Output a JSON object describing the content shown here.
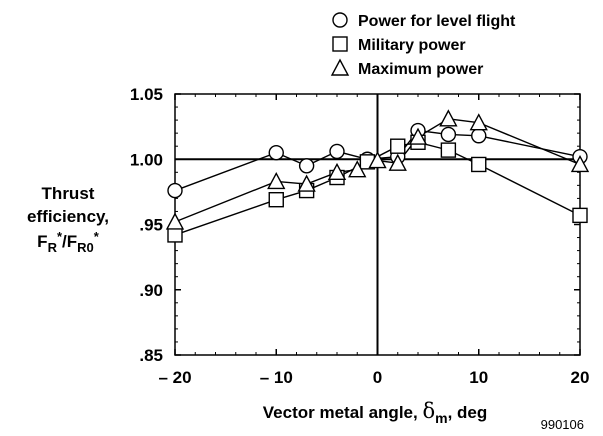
{
  "chart_data": {
    "type": "line",
    "xlabel": "Vector metal angle, δm, deg",
    "xlabel_main": "Vector metal angle, ",
    "xlabel_symbol": "δ",
    "xlabel_sub": "m",
    "xlabel_tail": ", deg",
    "ylabel_lines": [
      "Thrust",
      "efficiency,"
    ],
    "ylabel_ratio": {
      "num": "F",
      "num_sub": "R",
      "num_sup": "*",
      "slash": "/",
      "den": "F",
      "den_sub": "R0",
      "den_sup": "*"
    },
    "xlim": [
      -20,
      20
    ],
    "ylim": [
      0.85,
      1.05
    ],
    "xticks": [
      -20,
      -10,
      0,
      10,
      20
    ],
    "xtick_labels": [
      "– 20",
      "– 10",
      "0",
      "10",
      "20"
    ],
    "yticks": [
      0.85,
      0.9,
      0.95,
      1.0,
      1.05
    ],
    "ytick_labels": [
      ".85",
      ".90",
      ".95",
      "1.00",
      "1.05"
    ],
    "reference_lines": {
      "x": 0,
      "y": 1.0
    },
    "legend_position": "top-right",
    "series": [
      {
        "name": "Power for level flight",
        "marker": "circle",
        "x": [
          -20,
          -10,
          -7,
          -4,
          -1,
          2,
          4,
          7,
          10,
          20
        ],
        "y": [
          0.976,
          1.005,
          0.995,
          1.006,
          1.0,
          1.002,
          1.022,
          1.019,
          1.018,
          1.002
        ]
      },
      {
        "name": "Military power",
        "marker": "square",
        "x": [
          -20,
          -10,
          -7,
          -4,
          -1,
          2,
          4,
          7,
          10,
          20
        ],
        "y": [
          0.942,
          0.969,
          0.976,
          0.986,
          0.998,
          1.01,
          1.013,
          1.007,
          0.996,
          0.957
        ]
      },
      {
        "name": "Maximum power",
        "marker": "triangle",
        "x": [
          -20,
          -10,
          -7,
          -4,
          -2,
          0,
          2,
          4,
          7,
          10,
          20
        ],
        "y": [
          0.952,
          0.983,
          0.981,
          0.99,
          0.992,
          0.999,
          0.997,
          1.017,
          1.031,
          1.028,
          0.996
        ]
      }
    ]
  },
  "figure_id": "990106"
}
